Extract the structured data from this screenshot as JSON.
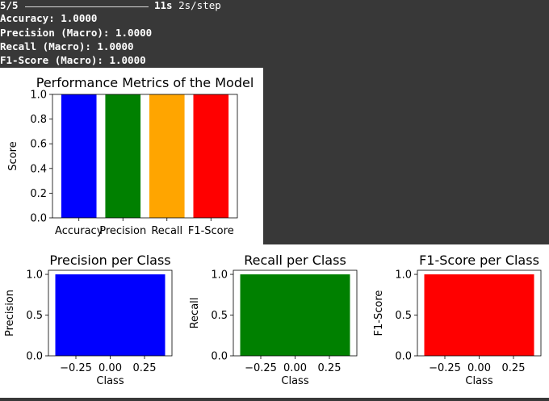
{
  "console": {
    "progress_steps": "5/5",
    "progress_time": "11s",
    "progress_rate": "2s/step",
    "lines": [
      "Accuracy: 1.0000",
      "Precision (Macro): 1.0000",
      "Recall (Macro): 1.0000",
      "F1-Score (Macro): 1.0000"
    ]
  },
  "colors": {
    "console_bg": "#383838",
    "blue": "#0000ff",
    "green": "#008000",
    "orange": "#ffa500",
    "red": "#ff0000"
  },
  "chart_data": [
    {
      "type": "bar",
      "title": "Performance Metrics of the Model",
      "xlabel": "",
      "ylabel": "Score",
      "categories": [
        "Accuracy",
        "Precision",
        "Recall",
        "F1-Score"
      ],
      "values": [
        1.0,
        1.0,
        1.0,
        1.0
      ],
      "colors": [
        "#0000ff",
        "#008000",
        "#ffa500",
        "#ff0000"
      ],
      "ylim": [
        0,
        1.0
      ],
      "yticks": [
        "0.0",
        "0.2",
        "0.4",
        "0.6",
        "0.8",
        "1.0"
      ]
    },
    {
      "type": "bar",
      "title": "Precision per Class",
      "xlabel": "Class",
      "ylabel": "Precision",
      "x": [
        0
      ],
      "values": [
        1.0
      ],
      "color": "#0000ff",
      "xlim": [
        -0.45,
        0.45
      ],
      "ylim": [
        0,
        1.05
      ],
      "xticks": [
        "−0.25",
        "0.00",
        "0.25"
      ],
      "yticks": [
        "0.0",
        "0.5",
        "1.0"
      ]
    },
    {
      "type": "bar",
      "title": "Recall per Class",
      "xlabel": "Class",
      "ylabel": "Recall",
      "x": [
        0
      ],
      "values": [
        1.0
      ],
      "color": "#008000",
      "xlim": [
        -0.45,
        0.45
      ],
      "ylim": [
        0,
        1.05
      ],
      "xticks": [
        "−0.25",
        "0.00",
        "0.25"
      ],
      "yticks": [
        "0.0",
        "0.5",
        "1.0"
      ]
    },
    {
      "type": "bar",
      "title": "F1-Score per Class",
      "xlabel": "Class",
      "ylabel": "F1-Score",
      "x": [
        0
      ],
      "values": [
        1.0
      ],
      "color": "#ff0000",
      "xlim": [
        -0.45,
        0.45
      ],
      "ylim": [
        0,
        1.05
      ],
      "xticks": [
        "−0.25",
        "0.00",
        "0.25"
      ],
      "yticks": [
        "0.0",
        "0.5",
        "1.0"
      ]
    }
  ]
}
